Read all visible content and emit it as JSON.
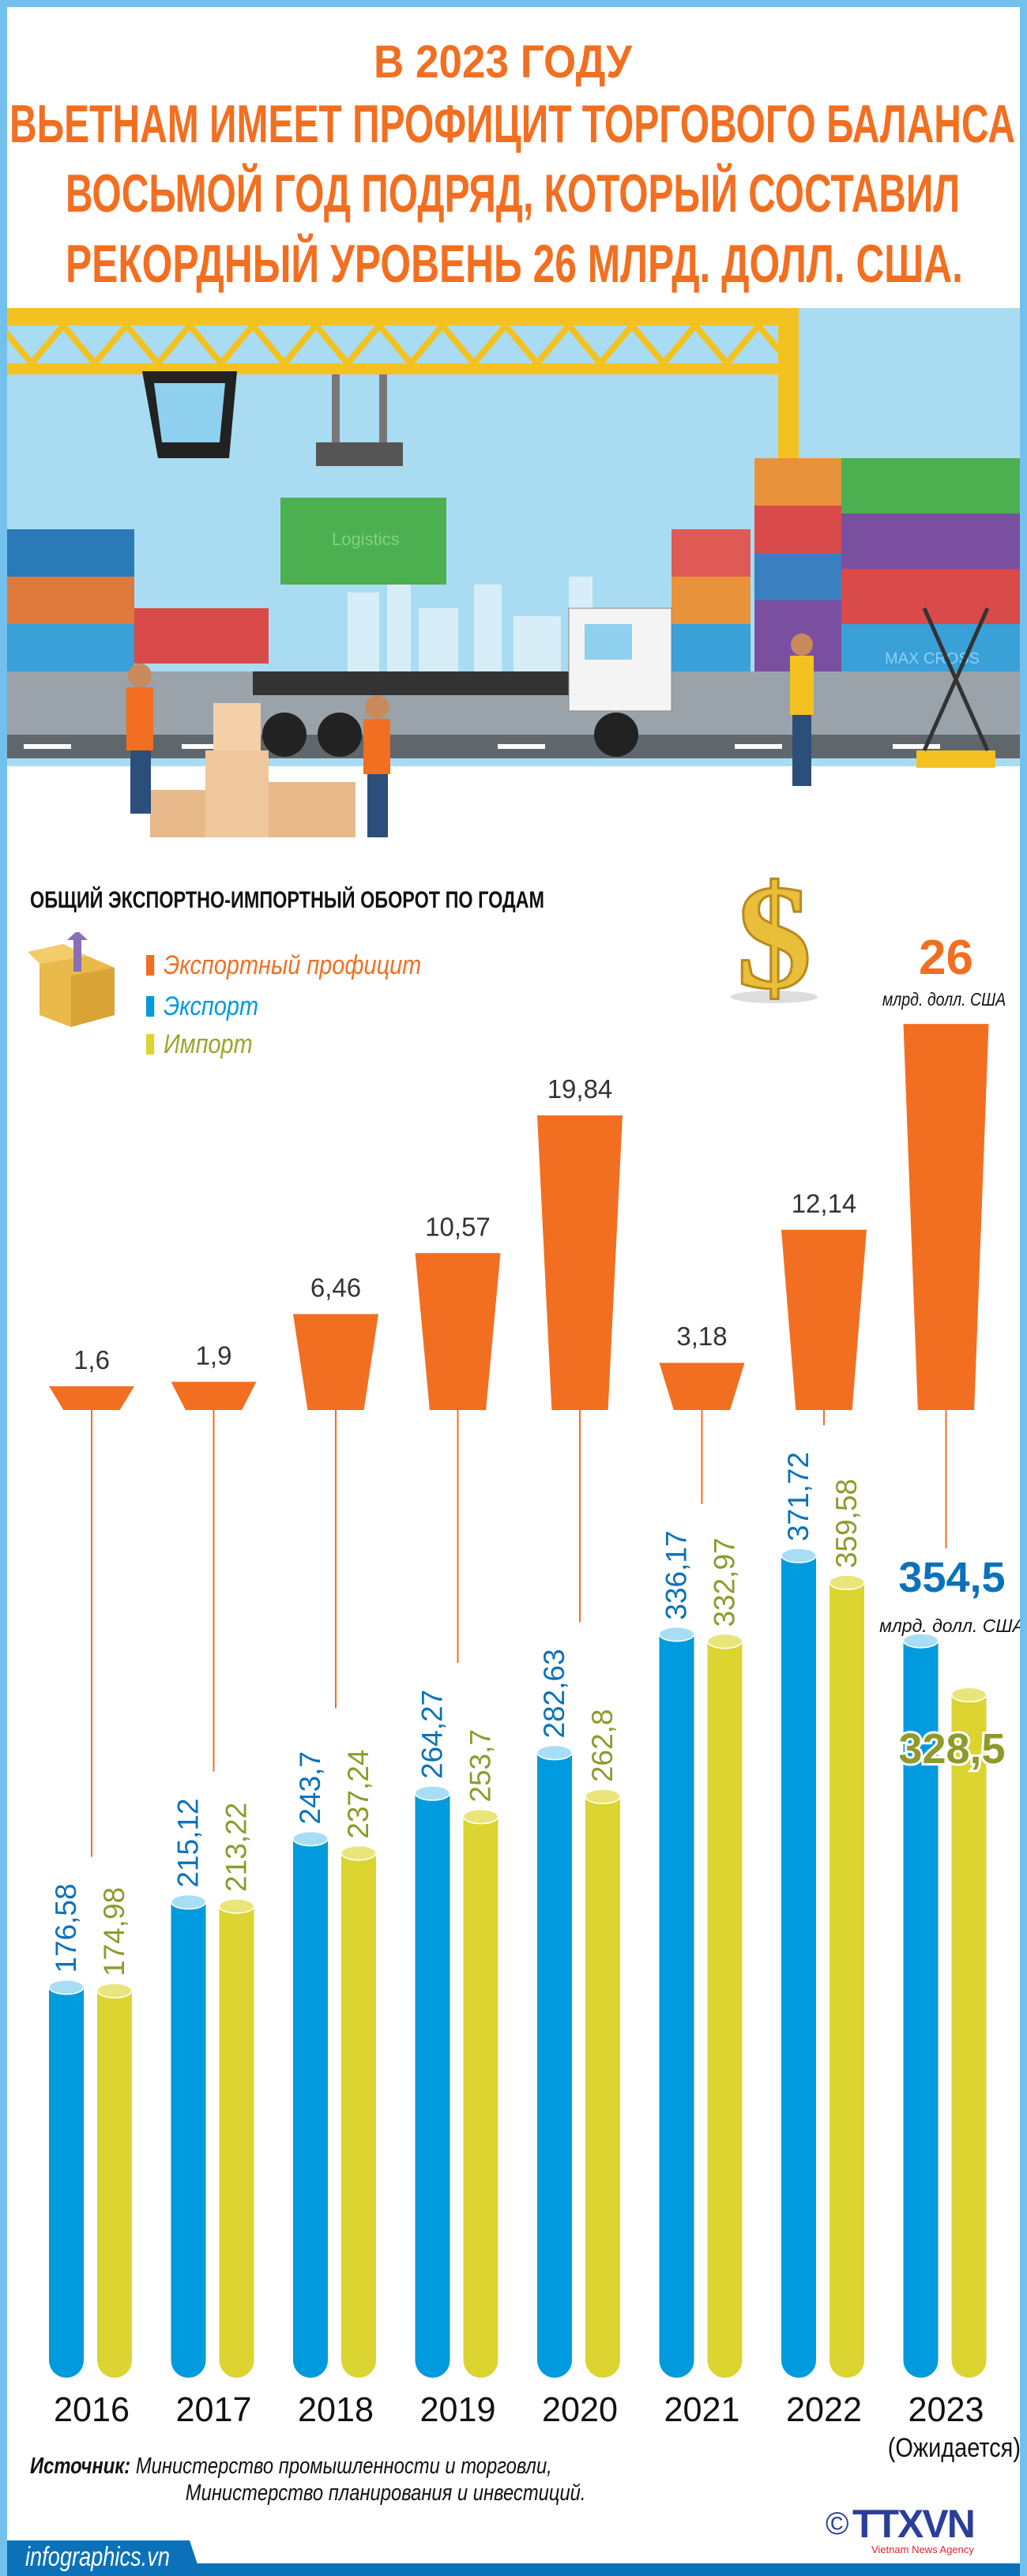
{
  "header": {
    "title_lines": [
      "В 2023 ГОДУ",
      "ВЬЕТНАМ ИМЕЕТ ПРОФИЦИТ ТОРГОВОГО БАЛАНСА",
      "ВОСЬМОЙ ГОД ПОДРЯД, КОТОРЫЙ СОСТАВИЛ",
      "РЕКОРДНЫЙ УРОВЕНЬ 26 МЛРД. ДОЛЛ. США."
    ]
  },
  "illustration": {
    "container_label_1": "Logistics",
    "container_label_2": "MAX CROSS"
  },
  "highlight": {
    "value": "26",
    "unit": "млрд. долл. США"
  },
  "chart_data": {
    "type": "bar",
    "title": "ОБЩИЙ ЭКСПОРТНО-ИМПОРТНЫЙ ОБОРОТ ПО ГОДАМ",
    "categories": [
      "2016",
      "2017",
      "2018",
      "2019",
      "2020",
      "2021",
      "2022",
      "2023"
    ],
    "category_note": "(Ожидается)",
    "series": [
      {
        "name": "Экспортный профицит",
        "color": "#f26f21",
        "values": [
          1.6,
          1.9,
          6.46,
          10.57,
          19.84,
          3.18,
          12.14,
          26
        ],
        "labels": [
          "1,6",
          "1,9",
          "6,46",
          "10,57",
          "19,84",
          "3,18",
          "12,14",
          "26"
        ]
      },
      {
        "name": "Экспорт",
        "color": "#009ade",
        "values": [
          176.58,
          215.12,
          243.7,
          264.27,
          282.63,
          336.17,
          371.72,
          354.5
        ],
        "labels": [
          "176,58",
          "215,12",
          "243,7",
          "264,27",
          "282,63",
          "336,17",
          "371,72",
          "354,5"
        ]
      },
      {
        "name": "Импорт",
        "color": "#dcd431",
        "values": [
          174.98,
          213.22,
          237.24,
          253.7,
          262.8,
          332.97,
          359.58,
          328.5
        ],
        "labels": [
          "174,98",
          "213,22",
          "237,24",
          "253,7",
          "262,8",
          "332,97",
          "359,58",
          "328,5"
        ]
      }
    ],
    "unit_2023": "млрд. долл. США",
    "legend_position": "top-left",
    "grid": false
  },
  "legend": {
    "items": [
      "Экспортный профицит",
      "Экспорт",
      "Импорт"
    ]
  },
  "colors": {
    "orange": "#f26f21",
    "blue": "#009ade",
    "yellow": "#dcd431",
    "olive_text": "#8e9a2c",
    "blue_text": "#0b72ba",
    "frame": "#74c0ec"
  },
  "footer": {
    "source_label": "Источник:",
    "source_line1": "Министерство промышленности и торговли,",
    "source_line2": "Министерство планирования и инвестиций.",
    "site": "infographics.vn",
    "logo_text": "TTXVN",
    "logo_sub": "Vietnam News Agency",
    "copyright": "©"
  }
}
